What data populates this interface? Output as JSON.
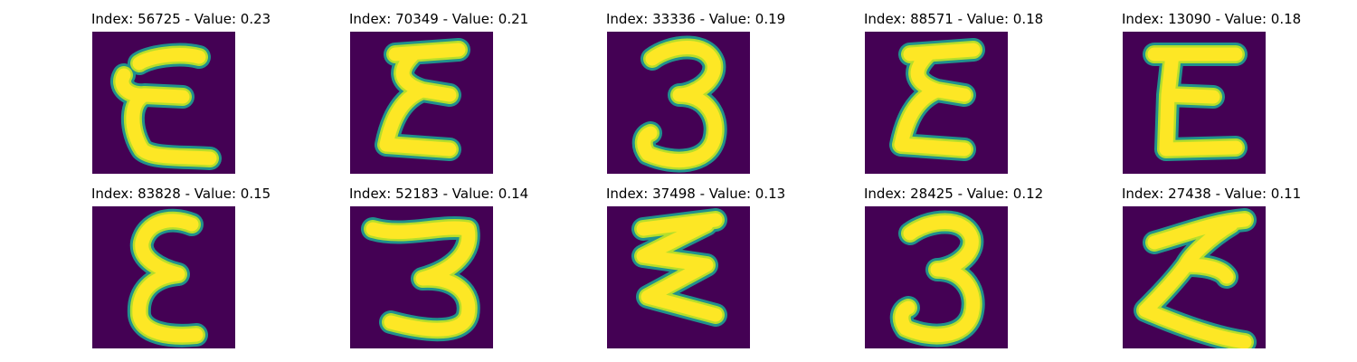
{
  "colors": {
    "background": "#440154",
    "stroke_core": "#fde725",
    "stroke_mid": "#b5de2b",
    "stroke_edge": "#21918c"
  },
  "panels": [
    {
      "title": "Index: 56725 - Value: 0.23",
      "glyph": "epsilon-wide"
    },
    {
      "title": "Index: 70349 - Value: 0.21",
      "glyph": "epsilon-zigzag"
    },
    {
      "title": "Index: 33336 - Value: 0.19",
      "glyph": "three"
    },
    {
      "title": "Index: 88571 - Value: 0.18",
      "glyph": "epsilon-zigzag"
    },
    {
      "title": "Index: 13090 - Value: 0.18",
      "glyph": "epsilon-square"
    },
    {
      "title": "Index: 83828 - Value: 0.15",
      "glyph": "epsilon-round"
    },
    {
      "title": "Index: 52183 - Value: 0.14",
      "glyph": "three-flat"
    },
    {
      "title": "Index: 37498 - Value: 0.13",
      "glyph": "epsilon-zigzag-wide"
    },
    {
      "title": "Index: 28425 - Value: 0.12",
      "glyph": "three"
    },
    {
      "title": "Index: 27438 - Value: 0.11",
      "glyph": "epsilon-slanted"
    }
  ]
}
